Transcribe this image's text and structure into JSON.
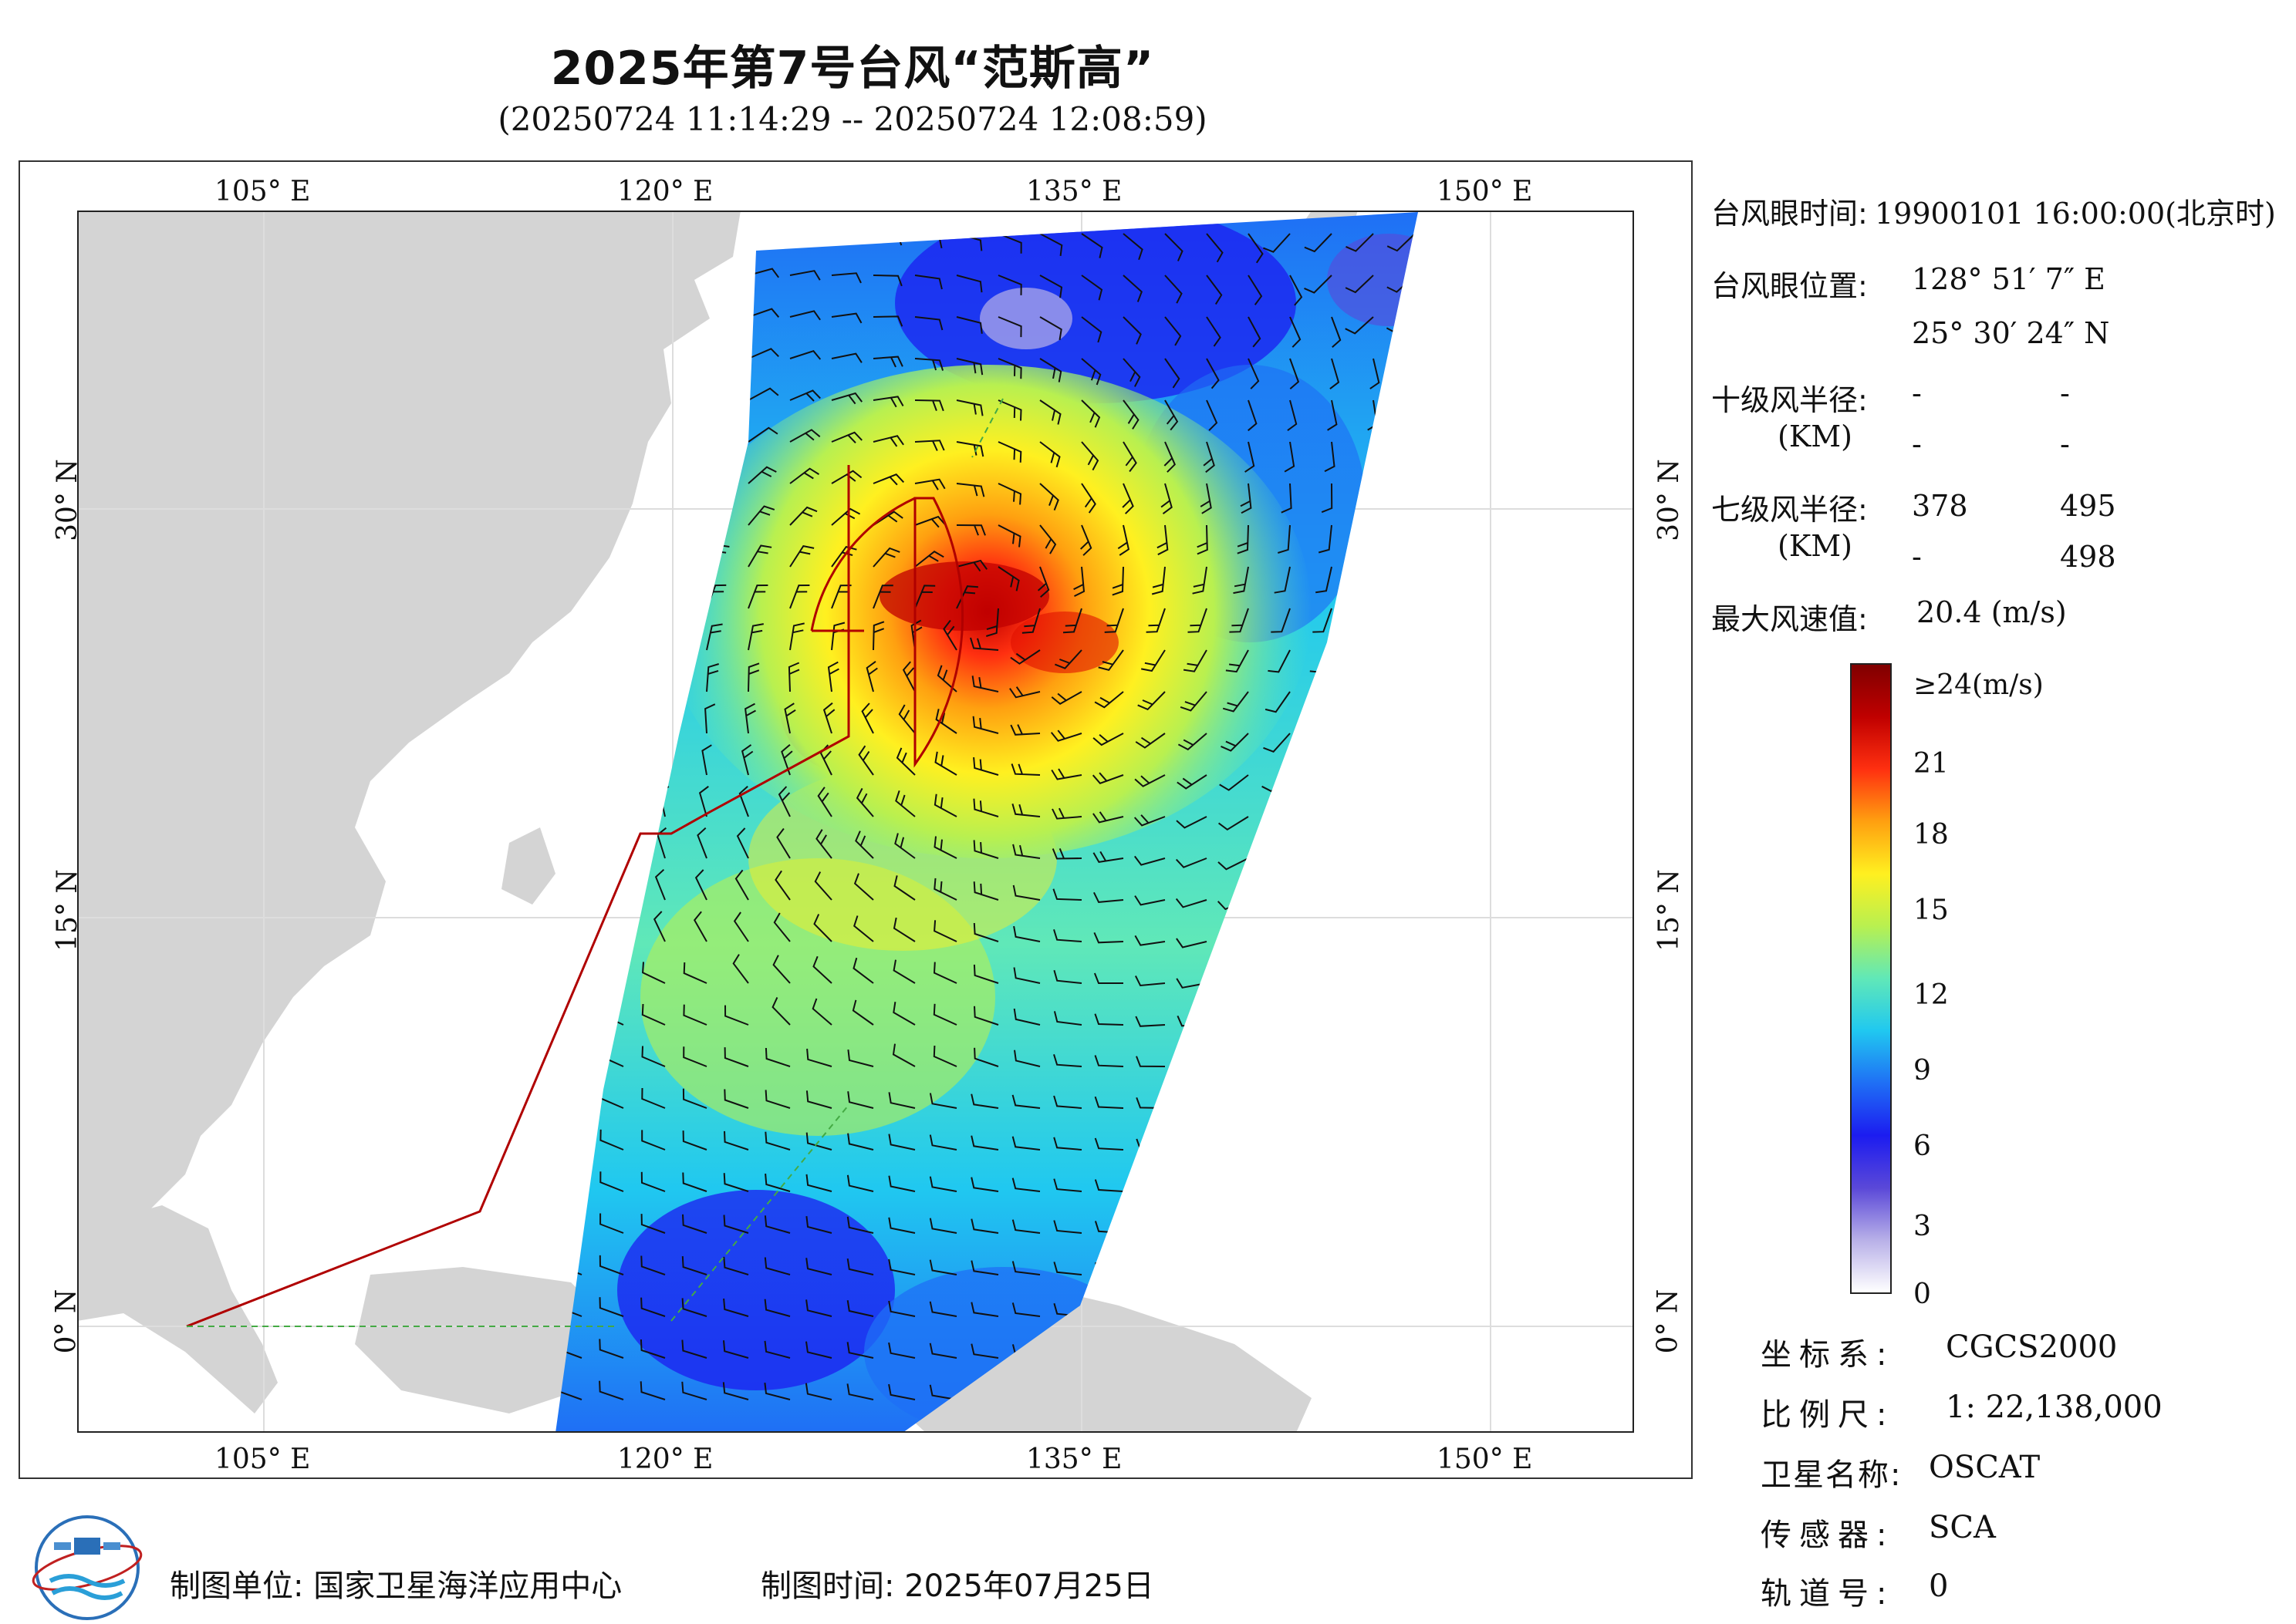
{
  "header": {
    "title": "2025年第7号台风“范斯高”",
    "subtitle": "(20250724 11:14:29 -- 20250724 12:08:59)"
  },
  "map": {
    "lon_ticks": [
      "105° E",
      "120° E",
      "135° E",
      "150° E"
    ],
    "lat_ticks": [
      "30° N",
      "15° N",
      "0° N"
    ],
    "colors": {
      "land": "#d4d4d4",
      "sea": "#ffffff",
      "boundary": "#b00000",
      "gridline": "#dddddd"
    }
  },
  "info": {
    "eye_time_label": "台风眼时间:",
    "eye_time_value": "19900101 16:00:00(北京时)",
    "eye_pos_label": "台风眼位置:",
    "eye_lon": "128° 51′ 7″ E",
    "eye_lat": "25° 30′ 24″ N",
    "r10_label": "十级风半径:",
    "r10_unit": "(KM)",
    "r10_values": [
      "-",
      "-",
      "-",
      "-"
    ],
    "r7_label": "七级风半径:",
    "r7_unit": "(KM)",
    "r7_values": [
      "378",
      "495",
      "-",
      "498"
    ],
    "max_wind_label": "最大风速值:",
    "max_wind_value": "20.4  (m/s)"
  },
  "colorbar": {
    "labels": [
      "≥24(m/s)",
      "21",
      "18",
      "15",
      "12",
      "9",
      "6",
      "3",
      "0"
    ],
    "stops": [
      "#ffffff",
      "#b8b0e8",
      "#5a48d8",
      "#1c1cf0",
      "#1f6ff5",
      "#20c8f0",
      "#60e8b8",
      "#b8f050",
      "#fff020",
      "#ffa010",
      "#ff3010",
      "#c00000",
      "#800000"
    ]
  },
  "meta": {
    "crs_label": "坐标系:",
    "crs_value": "CGCS2000",
    "scale_label": "比例尺:",
    "scale_value": "1: 22,138,000",
    "sat_label": "卫星名称:",
    "sat_value": "OSCAT",
    "sensor_label": "传感器:",
    "sensor_value": "SCA",
    "orbit_label": "轨道号:",
    "orbit_value": "0"
  },
  "footer": {
    "unit": "制图单位:  国家卫星海洋应用中心",
    "time": "制图时间:   2025年07月25日"
  }
}
